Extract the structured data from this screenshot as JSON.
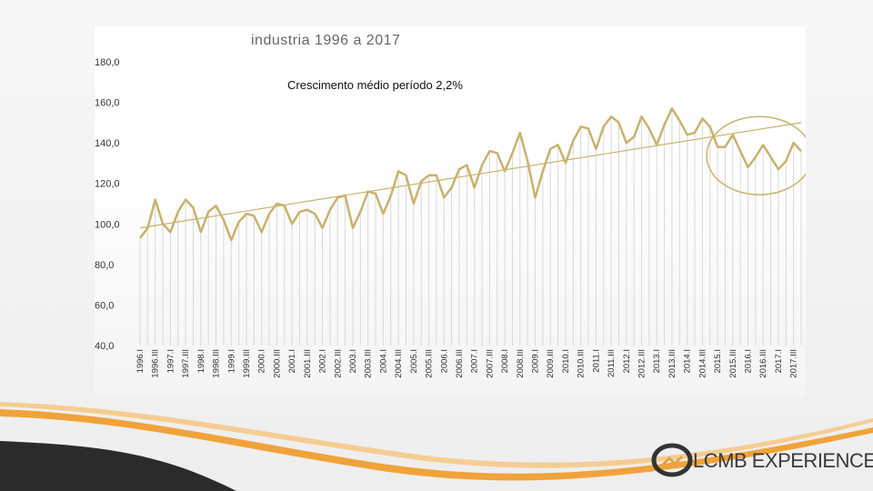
{
  "brand": {
    "name": "LCMB EXPERIENCE"
  },
  "chart_data": {
    "type": "line",
    "title": "industria 1996 a 2017",
    "annotation": "Crescimento médio período 2,2%",
    "xlabel": "",
    "ylabel": "",
    "ylim": [
      40,
      180
    ],
    "yticks": [
      "180,0",
      "160,0",
      "140,0",
      "120,0",
      "100,0",
      "80,0",
      "60,0",
      "40,0"
    ],
    "ytick_values": [
      180,
      160,
      140,
      120,
      100,
      80,
      60,
      40
    ],
    "xtick_labels": [
      "1996.I",
      "1996.III",
      "1997.I",
      "1997.III",
      "1998.I",
      "1998.III",
      "1999.I",
      "1999.III",
      "2000.I",
      "2000.III",
      "2001.I",
      "2001.III",
      "2002.I",
      "2002.III",
      "2003.I",
      "2003.III",
      "2004.I",
      "2004.III",
      "2005.I",
      "2005.III",
      "2006.I",
      "2006.III",
      "2007.I",
      "2007.III",
      "2008.I",
      "2008.III",
      "2009.I",
      "2009.III",
      "2010.I",
      "2010.III",
      "2011.I",
      "2011.III",
      "2012.I",
      "2012.III",
      "2013.I",
      "2013.III",
      "2014.I",
      "2014.III",
      "2015.I",
      "2015.III",
      "2016.I",
      "2016.III",
      "2017.I",
      "2017.III"
    ],
    "series": [
      {
        "name": "",
        "color": "#c9b26c",
        "values": [
          93,
          98,
          112,
          100,
          96,
          106,
          112,
          108,
          96,
          106,
          109,
          102,
          92,
          101,
          105,
          104,
          96,
          105,
          110,
          109,
          100,
          106,
          107,
          105,
          98,
          107,
          113,
          114,
          98,
          106,
          116,
          115,
          105,
          114,
          126,
          124,
          110,
          121,
          124,
          124,
          113,
          118,
          127,
          129,
          118,
          129,
          136,
          135,
          126,
          135,
          145,
          131,
          113,
          126,
          137,
          139,
          130,
          141,
          148,
          147,
          137,
          148,
          153,
          150,
          140,
          143,
          153,
          147,
          139,
          149,
          157,
          151,
          144,
          145,
          152,
          148,
          138,
          138,
          144,
          136,
          128,
          133,
          139,
          133,
          127,
          131,
          140,
          136
        ]
      }
    ],
    "trendline": {
      "start": 98,
      "end": 150,
      "color": "#c9b26c"
    },
    "highlight": {
      "label": "2015-2017",
      "from_index": 76,
      "to_index": 87,
      "color": "#c9b26c"
    }
  }
}
